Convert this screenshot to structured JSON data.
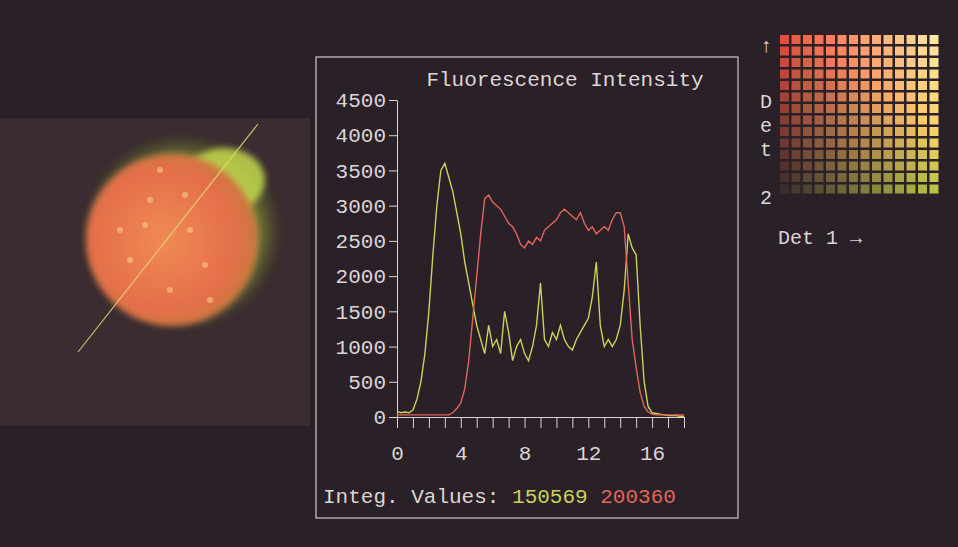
{
  "chart_data": {
    "type": "line",
    "title": "Fluorescence Intensity",
    "x": [
      0,
      0.25,
      0.5,
      0.75,
      1,
      1.25,
      1.5,
      1.75,
      2,
      2.25,
      2.5,
      2.75,
      3,
      3.25,
      3.5,
      3.75,
      4,
      4.25,
      4.5,
      4.75,
      5,
      5.25,
      5.5,
      5.75,
      6,
      6.25,
      6.5,
      6.75,
      7,
      7.25,
      7.5,
      7.75,
      8,
      8.25,
      8.5,
      8.75,
      9,
      9.25,
      9.5,
      9.75,
      10,
      10.25,
      10.5,
      10.75,
      11,
      11.25,
      11.5,
      11.75,
      12,
      12.25,
      12.5,
      12.75,
      13,
      13.25,
      13.5,
      13.75,
      14,
      14.25,
      14.5,
      14.75,
      15,
      15.25,
      15.5,
      15.75,
      16,
      16.25,
      16.5,
      16.75,
      17,
      17.25,
      17.5,
      17.75,
      18
    ],
    "xlim": [
      0,
      18
    ],
    "xticks": [
      0,
      4,
      8,
      12,
      16
    ],
    "xticks_minor": [
      1,
      2,
      3,
      5,
      6,
      7,
      9,
      10,
      11,
      13,
      14,
      15,
      17,
      18
    ],
    "ylim": [
      0,
      4500
    ],
    "yticks": [
      0,
      500,
      1000,
      1500,
      2000,
      2500,
      3000,
      3500,
      4000,
      4500
    ],
    "integ_label": "Integ. Values:",
    "series": [
      {
        "color": "#c9d35a",
        "integral": 150569,
        "values": [
          80,
          60,
          70,
          60,
          100,
          250,
          500,
          900,
          1500,
          2300,
          3000,
          3500,
          3600,
          3400,
          3200,
          2900,
          2600,
          2200,
          1900,
          1600,
          1300,
          1100,
          900,
          1300,
          1000,
          1100,
          900,
          1500,
          1200,
          800,
          1000,
          1100,
          900,
          800,
          1000,
          1300,
          1900,
          1100,
          1000,
          1200,
          1100,
          1300,
          1100,
          1000,
          950,
          1100,
          1200,
          1300,
          1400,
          1700,
          2200,
          1300,
          1000,
          1100,
          1000,
          1100,
          1300,
          1800,
          2600,
          2400,
          2300,
          1300,
          500,
          150,
          60,
          50,
          40,
          30,
          20,
          20,
          20,
          10,
          10
        ]
      },
      {
        "color": "#e0665a",
        "integral": 200360,
        "values": [
          30,
          30,
          30,
          30,
          30,
          30,
          30,
          30,
          30,
          30,
          30,
          30,
          30,
          30,
          60,
          120,
          200,
          400,
          800,
          1400,
          2000,
          2600,
          3100,
          3150,
          3050,
          3000,
          2950,
          2850,
          2750,
          2700,
          2600,
          2450,
          2400,
          2500,
          2450,
          2550,
          2500,
          2650,
          2700,
          2750,
          2800,
          2900,
          2950,
          2900,
          2850,
          2800,
          2900,
          2750,
          2650,
          2700,
          2600,
          2650,
          2700,
          2650,
          2800,
          2900,
          2900,
          2700,
          1900,
          1100,
          700,
          350,
          150,
          70,
          40,
          30,
          30,
          30,
          30,
          30,
          30,
          30,
          30
        ]
      }
    ]
  },
  "color_map": {
    "y_arrow": "↑",
    "y_label": "Det 2",
    "x_label": "Det 1 →"
  }
}
